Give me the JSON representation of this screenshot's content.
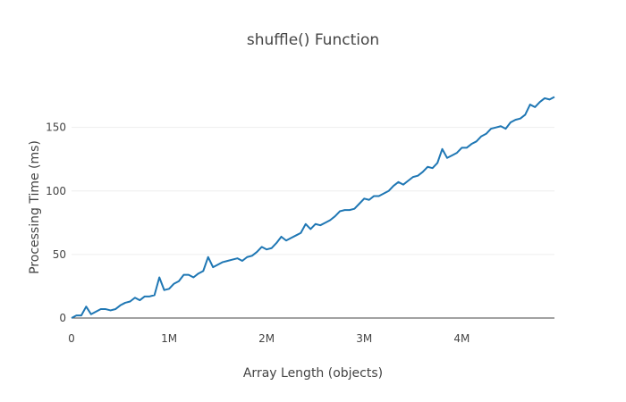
{
  "chart_data": {
    "type": "line",
    "title": "shuffle() Function",
    "xlabel": "Array Length (objects)",
    "ylabel": "Processing Time (ms)",
    "xlim": [
      0,
      4950000
    ],
    "ylim": [
      0,
      180
    ],
    "x_ticks": [
      {
        "value": 0,
        "label": "0"
      },
      {
        "value": 1000000,
        "label": "1M"
      },
      {
        "value": 2000000,
        "label": "2M"
      },
      {
        "value": 3000000,
        "label": "3M"
      },
      {
        "value": 4000000,
        "label": "4M"
      }
    ],
    "y_ticks": [
      {
        "value": 0,
        "label": "0"
      },
      {
        "value": 50,
        "label": "50"
      },
      {
        "value": 100,
        "label": "100"
      },
      {
        "value": 150,
        "label": "150"
      }
    ],
    "grid": true,
    "legend": "none",
    "series": [
      {
        "color": "#1f77b4",
        "x": [
          0,
          50000,
          100000,
          150000,
          200000,
          250000,
          300000,
          350000,
          400000,
          450000,
          500000,
          550000,
          600000,
          650000,
          700000,
          750000,
          800000,
          850000,
          900000,
          950000,
          1000000,
          1050000,
          1100000,
          1150000,
          1200000,
          1250000,
          1300000,
          1350000,
          1400000,
          1450000,
          1500000,
          1550000,
          1600000,
          1650000,
          1700000,
          1750000,
          1800000,
          1850000,
          1900000,
          1950000,
          2000000,
          2050000,
          2100000,
          2150000,
          2200000,
          2250000,
          2300000,
          2350000,
          2400000,
          2450000,
          2500000,
          2550000,
          2600000,
          2650000,
          2700000,
          2750000,
          2800000,
          2850000,
          2900000,
          2950000,
          3000000,
          3050000,
          3100000,
          3150000,
          3200000,
          3250000,
          3300000,
          3350000,
          3400000,
          3450000,
          3500000,
          3550000,
          3600000,
          3650000,
          3700000,
          3750000,
          3800000,
          3850000,
          3900000,
          3950000,
          4000000,
          4050000,
          4100000,
          4150000,
          4200000,
          4250000,
          4300000,
          4350000,
          4400000,
          4450000,
          4500000,
          4550000,
          4600000,
          4650000,
          4700000,
          4750000,
          4800000,
          4850000,
          4900000,
          4950000
        ],
        "y": [
          0,
          2,
          2,
          9,
          3,
          5,
          7,
          7,
          6,
          7,
          10,
          12,
          13,
          16,
          14,
          17,
          17,
          18,
          32,
          22,
          23,
          27,
          29,
          34,
          34,
          32,
          35,
          37,
          48,
          40,
          42,
          44,
          45,
          46,
          47,
          45,
          48,
          49,
          52,
          56,
          54,
          55,
          59,
          64,
          61,
          63,
          65,
          67,
          74,
          70,
          74,
          73,
          75,
          77,
          80,
          84,
          85,
          85,
          86,
          90,
          94,
          93,
          96,
          96,
          98,
          100,
          104,
          107,
          105,
          108,
          111,
          112,
          115,
          119,
          118,
          122,
          133,
          126,
          128,
          130,
          134,
          134,
          137,
          139,
          143,
          145,
          149,
          150,
          151,
          149,
          154,
          156,
          157,
          160,
          168,
          166,
          170,
          173,
          172,
          174
        ]
      }
    ]
  }
}
